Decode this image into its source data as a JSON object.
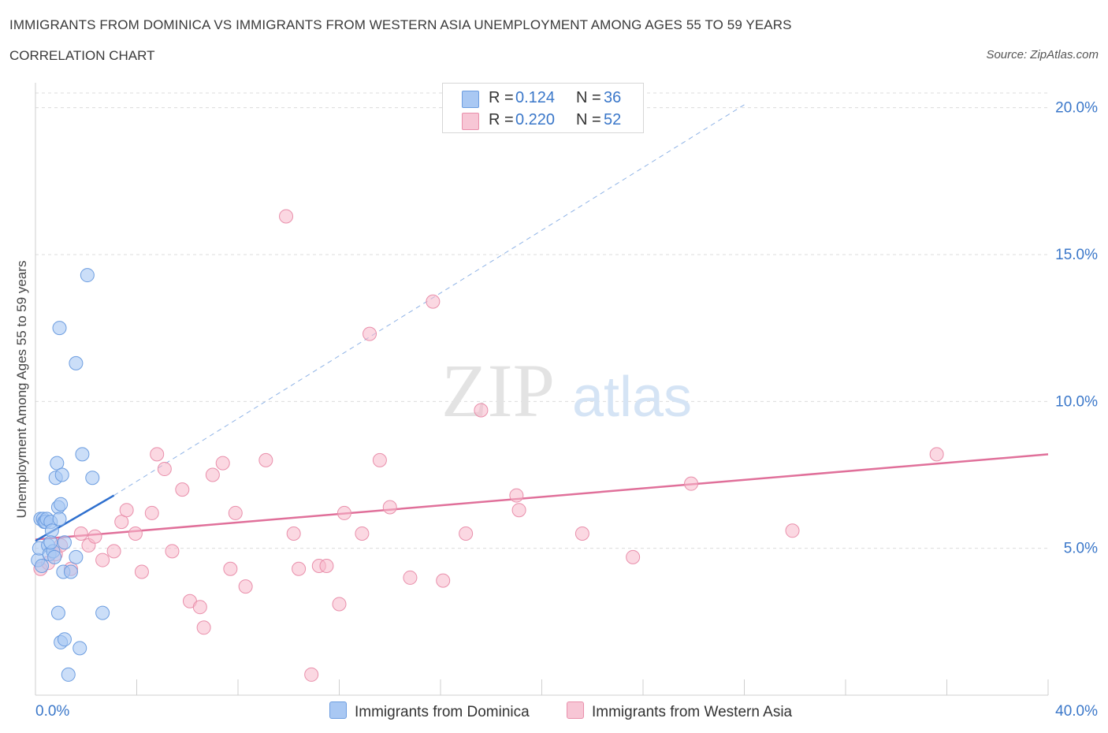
{
  "title": "IMMIGRANTS FROM DOMINICA VS IMMIGRANTS FROM WESTERN ASIA UNEMPLOYMENT AMONG AGES 55 TO 59 YEARS",
  "subtitle": "CORRELATION CHART",
  "source": "Source: ZipAtlas.com",
  "watermark": {
    "zip": "ZIP",
    "atlas": "atlas"
  },
  "colors": {
    "blue_fill": "#a9c8f3",
    "blue_stroke": "#6c9de0",
    "blue_line": "#2e6fce",
    "pink_fill": "#f7b8cb",
    "pink_stroke": "#e98fab",
    "pink_line": "#e0709a",
    "tick_label": "#3a77c9",
    "grid": "#dcdcdc"
  },
  "legend": {
    "rows": [
      {
        "r_label": "R =",
        "r_value": "0.124",
        "n_label": "N =",
        "n_value": "36"
      },
      {
        "r_label": "R =",
        "r_value": "0.220",
        "n_label": "N =",
        "n_value": "52"
      }
    ]
  },
  "chart_data": {
    "type": "scatter",
    "xlabel": "",
    "ylabel": "Unemployment Among Ages 55 to 59 years",
    "xlim": [
      0,
      40
    ],
    "ylim": [
      0,
      20.5
    ],
    "x_tick_labels": [
      "0.0%",
      "40.0%"
    ],
    "y_ticks": [
      5,
      10,
      15,
      20
    ],
    "y_tick_labels": [
      "5.0%",
      "10.0%",
      "15.0%",
      "20.0%"
    ],
    "grid": true,
    "series": [
      {
        "name": "Immigrants from Dominica",
        "r": 0.124,
        "n": 36,
        "trend": {
          "x0": 0,
          "y0": 5.25,
          "x1": 3.1,
          "y1": 6.8,
          "dash_x_end": 28,
          "dash_y_end": 20.1
        },
        "points": [
          [
            0.1,
            4.6
          ],
          [
            0.15,
            5.0
          ],
          [
            0.2,
            6.0
          ],
          [
            0.3,
            6.0
          ],
          [
            0.35,
            5.9
          ],
          [
            0.4,
            5.9
          ],
          [
            0.45,
            6.0
          ],
          [
            0.5,
            5.1
          ],
          [
            0.55,
            4.8
          ],
          [
            0.6,
            5.9
          ],
          [
            0.65,
            5.6
          ],
          [
            0.7,
            4.9
          ],
          [
            0.75,
            4.7
          ],
          [
            0.8,
            7.4
          ],
          [
            0.85,
            7.9
          ],
          [
            0.9,
            6.4
          ],
          [
            0.9,
            2.8
          ],
          [
            0.95,
            12.5
          ],
          [
            1.0,
            1.8
          ],
          [
            0.95,
            6.0
          ],
          [
            1.0,
            6.5
          ],
          [
            1.05,
            7.5
          ],
          [
            1.1,
            4.2
          ],
          [
            1.15,
            5.2
          ],
          [
            1.15,
            1.9
          ],
          [
            1.3,
            0.7
          ],
          [
            1.4,
            4.2
          ],
          [
            1.6,
            4.7
          ],
          [
            1.6,
            11.3
          ],
          [
            1.75,
            1.6
          ],
          [
            1.85,
            8.2
          ],
          [
            2.05,
            14.3
          ],
          [
            2.25,
            7.4
          ],
          [
            2.65,
            2.8
          ],
          [
            0.25,
            4.4
          ],
          [
            0.6,
            5.2
          ]
        ]
      },
      {
        "name": "Immigrants from Western Asia",
        "r": 0.22,
        "n": 52,
        "trend": {
          "x0": 0,
          "y0": 5.3,
          "x1": 40,
          "y1": 8.2
        },
        "points": [
          [
            0.2,
            4.3
          ],
          [
            0.5,
            4.5
          ],
          [
            0.8,
            4.8
          ],
          [
            1.0,
            5.1
          ],
          [
            1.4,
            4.3
          ],
          [
            1.8,
            5.5
          ],
          [
            2.1,
            5.1
          ],
          [
            2.35,
            5.4
          ],
          [
            2.65,
            4.6
          ],
          [
            3.1,
            4.9
          ],
          [
            3.4,
            5.9
          ],
          [
            3.6,
            6.3
          ],
          [
            3.95,
            5.5
          ],
          [
            4.2,
            4.2
          ],
          [
            4.6,
            6.2
          ],
          [
            4.8,
            8.2
          ],
          [
            5.1,
            7.7
          ],
          [
            5.4,
            4.9
          ],
          [
            5.8,
            7.0
          ],
          [
            6.1,
            3.2
          ],
          [
            6.5,
            3.0
          ],
          [
            6.65,
            2.3
          ],
          [
            7.0,
            7.5
          ],
          [
            7.4,
            7.9
          ],
          [
            7.7,
            4.3
          ],
          [
            7.9,
            6.2
          ],
          [
            8.3,
            3.7
          ],
          [
            9.1,
            8.0
          ],
          [
            9.9,
            16.3
          ],
          [
            10.2,
            5.5
          ],
          [
            10.4,
            4.3
          ],
          [
            10.9,
            0.7
          ],
          [
            11.2,
            4.4
          ],
          [
            11.5,
            4.4
          ],
          [
            12.0,
            3.1
          ],
          [
            12.2,
            6.2
          ],
          [
            12.9,
            5.5
          ],
          [
            13.2,
            12.3
          ],
          [
            13.6,
            8.0
          ],
          [
            14.0,
            6.4
          ],
          [
            14.8,
            4.0
          ],
          [
            15.7,
            13.4
          ],
          [
            16.1,
            3.9
          ],
          [
            17.0,
            5.5
          ],
          [
            17.6,
            9.7
          ],
          [
            19.0,
            6.8
          ],
          [
            19.1,
            6.3
          ],
          [
            21.6,
            5.5
          ],
          [
            23.6,
            4.7
          ],
          [
            25.9,
            7.2
          ],
          [
            29.9,
            5.6
          ],
          [
            35.6,
            8.2
          ]
        ]
      }
    ]
  }
}
